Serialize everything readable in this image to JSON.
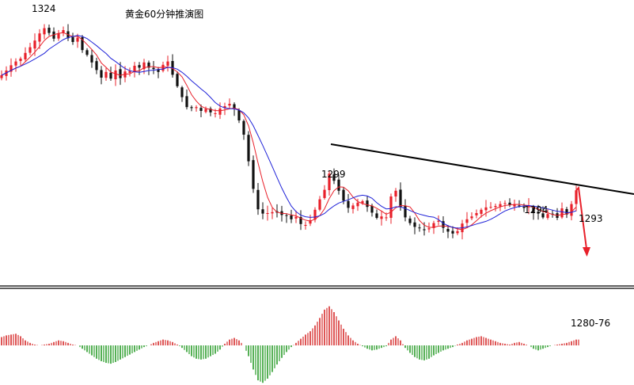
{
  "chart_data": {
    "type": "candlestick",
    "title": "黄金60分钟推演图",
    "ylim": [
      1270,
      1328
    ],
    "colors": {
      "up": "#e8202a",
      "down": "#111111",
      "ma_fast": "#e8202a",
      "ma_slow": "#1f22d8",
      "trendline": "#000000",
      "projection": "#e8202a",
      "macd_up": "#d62a2a",
      "macd_down": "#2a9c2a"
    },
    "price_path": [
      1313.5,
      1314.5,
      1315.6,
      1316.4,
      1317.0,
      1318.2,
      1319.4,
      1320.8,
      1322.3,
      1323.4,
      1322.4,
      1321.2,
      1322.3,
      1323.0,
      1321.3,
      1320.5,
      1321.4,
      1318.8,
      1317.8,
      1316.2,
      1314.6,
      1313.0,
      1314.2,
      1312.8,
      1314.5,
      1312.9,
      1314.3,
      1314.4,
      1315.5,
      1315.1,
      1316.2,
      1315.1,
      1314.8,
      1314.2,
      1315.7,
      1316.4,
      1313.6,
      1311.2,
      1308.9,
      1306.8,
      1306.6,
      1306.8,
      1306.0,
      1306.4,
      1305.7,
      1305.5,
      1306.5,
      1307.0,
      1307.5,
      1306.4,
      1304.0,
      1301.0,
      1295.4,
      1289.6,
      1285.3,
      1284.4,
      1284.5,
      1284.7,
      1284.6,
      1284.1,
      1284.0,
      1283.2,
      1283.7,
      1282.2,
      1282.0,
      1283.0,
      1285.2,
      1287.4,
      1289.4,
      1292.8,
      1291.3,
      1289.2,
      1287.1,
      1285.6,
      1286.1,
      1286.7,
      1287.0,
      1285.8,
      1284.6,
      1283.5,
      1283.8,
      1283.6,
      1288.0,
      1289.2,
      1285.8,
      1283.6,
      1282.4,
      1281.6,
      1281.3,
      1280.9,
      1281.3,
      1282.4,
      1282.9,
      1281.4,
      1280.6,
      1280.2,
      1280.7,
      1282.3,
      1283.2,
      1283.8,
      1284.5,
      1285.2,
      1285.7,
      1285.8,
      1286.0,
      1286.4,
      1286.6,
      1286.2,
      1286.4,
      1286.1,
      1285.6,
      1286.1,
      1284.5,
      1284.4,
      1283.6,
      1284.3,
      1284.2,
      1283.5,
      1285.5,
      1284.2,
      1286.4,
      1289.3
    ],
    "moving_averages": [
      {
        "period": 5,
        "color_key": "ma_fast"
      },
      {
        "period": 10,
        "color_key": "ma_slow"
      }
    ],
    "annotations": [
      {
        "label": "1324",
        "price": 1324
      },
      {
        "label": "1299",
        "price": 1299
      },
      {
        "label": "1294",
        "price": 1294
      },
      {
        "label": "1293",
        "price": 1293
      },
      {
        "label": "1280-76",
        "price": 1278
      }
    ],
    "trendline": {
      "from_label": "1299",
      "start_price": 1299.0,
      "end_price": 1288.5
    },
    "projection": {
      "from_price": 1289.3,
      "to_price": 1278.0,
      "label": "1280-76"
    },
    "macd_hist": [
      1.0,
      1.2,
      1.3,
      1.4,
      1.1,
      0.6,
      0.3,
      0.1,
      0.0,
      0.1,
      0.2,
      0.4,
      0.6,
      0.5,
      0.3,
      0.1,
      0.0,
      -0.4,
      -0.8,
      -1.2,
      -1.6,
      -1.9,
      -2.1,
      -2.2,
      -2.0,
      -1.7,
      -1.4,
      -1.1,
      -0.8,
      -0.5,
      -0.2,
      0.0,
      0.3,
      0.5,
      0.7,
      0.6,
      0.4,
      0.1,
      -0.3,
      -0.8,
      -1.3,
      -1.6,
      -1.7,
      -1.6,
      -1.3,
      -1.0,
      -0.5,
      0.2,
      0.7,
      0.9,
      0.6,
      0.0,
      -1.3,
      -2.9,
      -4.2,
      -4.5,
      -4.0,
      -3.2,
      -2.3,
      -1.5,
      -0.8,
      -0.2,
      0.3,
      0.8,
      1.3,
      1.7,
      2.4,
      3.3,
      4.3,
      4.7,
      4.0,
      3.0,
      2.0,
      1.2,
      0.6,
      0.2,
      -0.1,
      -0.4,
      -0.6,
      -0.5,
      -0.3,
      -0.1,
      0.7,
      1.1,
      0.6,
      -0.3,
      -0.9,
      -1.4,
      -1.7,
      -1.8,
      -1.6,
      -1.2,
      -0.9,
      -0.6,
      -0.4,
      -0.2,
      0.1,
      0.3,
      0.6,
      0.8,
      1.0,
      1.1,
      0.9,
      0.7,
      0.5,
      0.3,
      0.2,
      0.1,
      0.3,
      0.4,
      0.2,
      0.0,
      -0.4,
      -0.6,
      -0.4,
      -0.2,
      0.0,
      0.1,
      0.2,
      0.3,
      0.5,
      0.7
    ]
  }
}
